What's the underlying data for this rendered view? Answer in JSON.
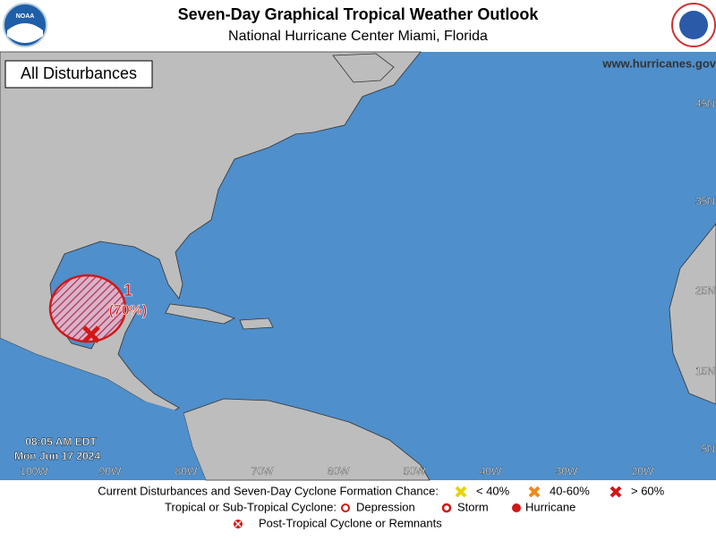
{
  "header": {
    "title": "Seven-Day Graphical Tropical Weather Outlook",
    "subtitle": "National Hurricane Center  Miami, Florida",
    "logo_left": "NOAA"
  },
  "map": {
    "label": "All Disturbances",
    "url": "www.hurricanes.gov",
    "timestamp": [
      "08:05 AM EDT",
      "Mon Jun 17 2024"
    ],
    "lon_labels": [
      "100W",
      "90W",
      "80W",
      "70W",
      "60W",
      "50W",
      "40W",
      "30W",
      "20W"
    ],
    "lat_labels": [
      "45N",
      "35N",
      "25N",
      "15N",
      "5N"
    ],
    "disturbance": {
      "number": "1",
      "chance": "(70%)"
    }
  },
  "legend": {
    "formation_title": "Current Disturbances and Seven-Day Cyclone Formation Chance:",
    "formation": [
      "< 40%",
      "40-60%",
      "> 60%"
    ],
    "cyclone_title": "Tropical or Sub-Tropical Cyclone:",
    "cyclone": [
      "Depression",
      "Storm",
      "Hurricane"
    ],
    "post": "Post-Tropical Cyclone or Remnants"
  }
}
